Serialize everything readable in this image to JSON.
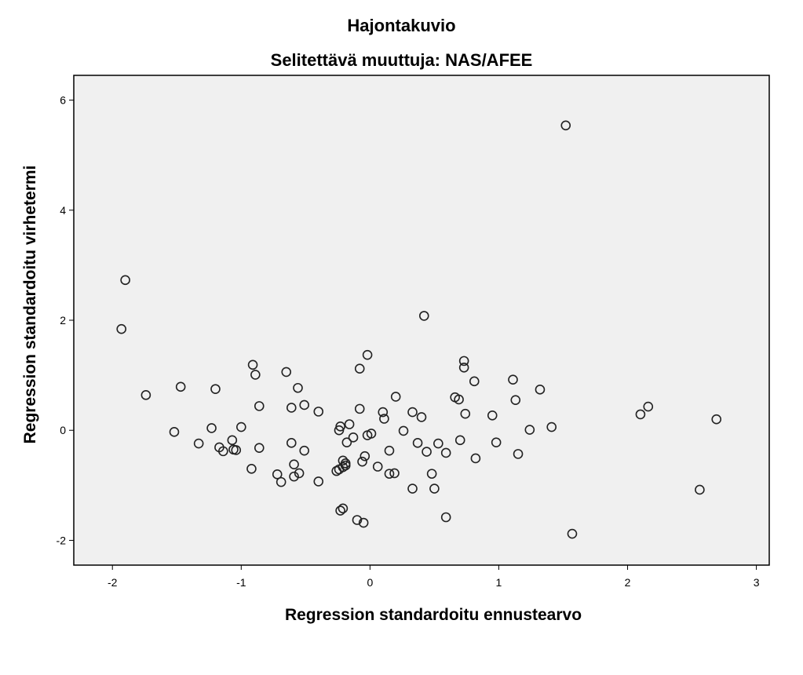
{
  "chart_data": {
    "type": "scatter",
    "title": "Hajontakuvio",
    "subtitle": "Selitettävä muuttuja: NAS/AFEE",
    "xlabel": "Regression standardoitu ennustearvo",
    "ylabel": "Regression standardoitu virhetermi",
    "xlim": [
      -2.3,
      3.1
    ],
    "ylim": [
      -2.45,
      6.45
    ],
    "xticks": [
      -2,
      -1,
      0,
      1,
      2,
      3
    ],
    "yticks": [
      -2,
      0,
      2,
      4,
      6
    ],
    "xtick_labels": [
      "-2",
      "-1",
      "0",
      "1",
      "2",
      "3"
    ],
    "ytick_labels": [
      "-2",
      "0",
      "2",
      "4",
      "6"
    ],
    "grid": false,
    "colors": {
      "plot_background": "#f0f0f0",
      "marker_stroke": "#222222",
      "axis": "#000000"
    },
    "marker": "open-circle",
    "points": [
      [
        -1.93,
        1.84
      ],
      [
        -1.9,
        2.73
      ],
      [
        -1.74,
        0.64
      ],
      [
        -1.52,
        -0.03
      ],
      [
        -1.47,
        0.79
      ],
      [
        -1.33,
        -0.24
      ],
      [
        -1.23,
        0.04
      ],
      [
        -1.2,
        0.75
      ],
      [
        -1.17,
        -0.31
      ],
      [
        -1.14,
        -0.38
      ],
      [
        -1.07,
        -0.18
      ],
      [
        -1.06,
        -0.35
      ],
      [
        -1.04,
        -0.36
      ],
      [
        -1.0,
        0.06
      ],
      [
        -0.92,
        -0.7
      ],
      [
        -0.91,
        1.19
      ],
      [
        -0.89,
        1.01
      ],
      [
        -0.86,
        0.44
      ],
      [
        -0.86,
        -0.32
      ],
      [
        -0.72,
        -0.8
      ],
      [
        -0.69,
        -0.94
      ],
      [
        -0.65,
        1.06
      ],
      [
        -0.61,
        -0.23
      ],
      [
        -0.61,
        0.41
      ],
      [
        -0.59,
        -0.62
      ],
      [
        -0.59,
        -0.84
      ],
      [
        -0.56,
        0.77
      ],
      [
        -0.55,
        -0.78
      ],
      [
        -0.51,
        -0.37
      ],
      [
        -0.51,
        0.46
      ],
      [
        -0.4,
        0.34
      ],
      [
        -0.4,
        -0.93
      ],
      [
        -0.26,
        -0.74
      ],
      [
        -0.24,
        -0.71
      ],
      [
        -0.24,
        0.0
      ],
      [
        -0.23,
        0.07
      ],
      [
        -0.23,
        -1.46
      ],
      [
        -0.21,
        -1.42
      ],
      [
        -0.21,
        -0.55
      ],
      [
        -0.21,
        -0.67
      ],
      [
        -0.19,
        -0.64
      ],
      [
        -0.19,
        -0.6
      ],
      [
        -0.18,
        -0.22
      ],
      [
        -0.16,
        0.11
      ],
      [
        -0.13,
        -0.13
      ],
      [
        -0.1,
        -1.63
      ],
      [
        -0.08,
        1.12
      ],
      [
        -0.08,
        0.39
      ],
      [
        -0.06,
        -0.57
      ],
      [
        -0.05,
        -1.68
      ],
      [
        -0.04,
        -0.47
      ],
      [
        -0.02,
        1.37
      ],
      [
        -0.02,
        -0.09
      ],
      [
        0.01,
        -0.06
      ],
      [
        0.06,
        -0.66
      ],
      [
        0.1,
        0.33
      ],
      [
        0.11,
        0.21
      ],
      [
        0.15,
        -0.37
      ],
      [
        0.15,
        -0.79
      ],
      [
        0.19,
        -0.78
      ],
      [
        0.2,
        0.61
      ],
      [
        0.26,
        -0.01
      ],
      [
        0.33,
        0.33
      ],
      [
        0.33,
        -1.06
      ],
      [
        0.37,
        -0.23
      ],
      [
        0.4,
        0.24
      ],
      [
        0.42,
        2.08
      ],
      [
        0.44,
        -0.39
      ],
      [
        0.48,
        -0.79
      ],
      [
        0.5,
        -1.06
      ],
      [
        0.53,
        -0.24
      ],
      [
        0.59,
        -1.58
      ],
      [
        0.59,
        -0.41
      ],
      [
        0.66,
        0.6
      ],
      [
        0.69,
        0.56
      ],
      [
        0.7,
        -0.18
      ],
      [
        0.73,
        1.26
      ],
      [
        0.73,
        1.14
      ],
      [
        0.74,
        0.3
      ],
      [
        0.81,
        0.89
      ],
      [
        0.82,
        -0.51
      ],
      [
        0.95,
        0.27
      ],
      [
        0.98,
        -0.22
      ],
      [
        1.11,
        0.92
      ],
      [
        1.13,
        0.55
      ],
      [
        1.15,
        -0.43
      ],
      [
        1.24,
        0.01
      ],
      [
        1.32,
        0.74
      ],
      [
        1.41,
        0.06
      ],
      [
        1.52,
        5.54
      ],
      [
        1.57,
        -1.88
      ],
      [
        2.1,
        0.29
      ],
      [
        2.16,
        0.43
      ],
      [
        2.56,
        -1.08
      ],
      [
        2.69,
        0.2
      ]
    ]
  }
}
